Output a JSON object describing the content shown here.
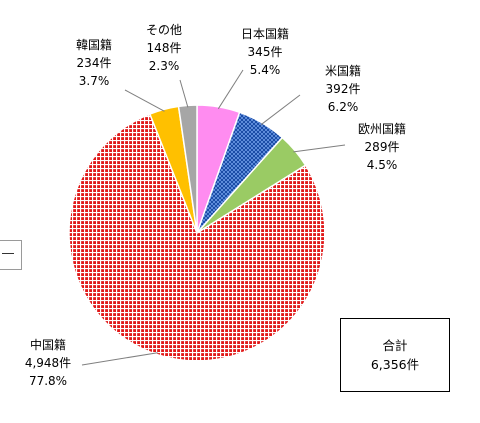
{
  "chart_data": {
    "type": "pie",
    "slices": [
      {
        "name": "日本国籍",
        "count": "345件",
        "pct": "5.4%",
        "value": 5.4,
        "color": "#FF8CF0",
        "pattern": "solid"
      },
      {
        "name": "米国籍",
        "count": "392件",
        "pct": "6.2%",
        "value": 6.2,
        "color": "#0A3C99",
        "pattern": "crosshatch"
      },
      {
        "name": "欧州国籍",
        "count": "289件",
        "pct": "4.5%",
        "value": 4.5,
        "color": "#9ACB64",
        "pattern": "solid"
      },
      {
        "name": "中国籍",
        "count": "4,948件",
        "pct": "77.8%",
        "value": 77.8,
        "color": "#E01818",
        "pattern": "grid"
      },
      {
        "name": "韓国籍",
        "count": "234件",
        "pct": "3.7%",
        "value": 3.7,
        "color": "#FFC000",
        "pattern": "solid"
      },
      {
        "name": "その他",
        "count": "148件",
        "pct": "2.3%",
        "value": 2.3,
        "color": "#A6A6A6",
        "pattern": "solid"
      }
    ],
    "start": "12 o'clock",
    "direction": "clockwise"
  },
  "total": {
    "label": "合計",
    "value": "6,356件"
  }
}
